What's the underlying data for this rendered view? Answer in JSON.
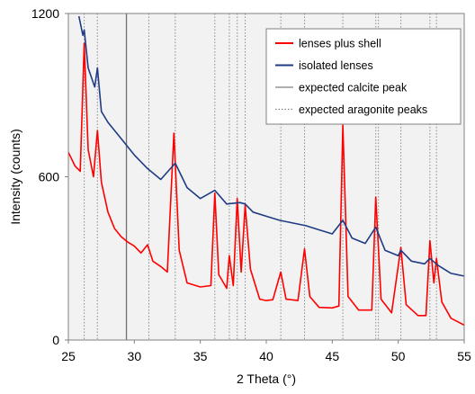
{
  "chart_data": {
    "type": "line",
    "xlabel": "2 Theta (°)",
    "ylabel": "Intensity (counts)",
    "xlim": [
      25,
      55
    ],
    "ylim": [
      0,
      1200
    ],
    "x_ticks": [
      25,
      30,
      35,
      40,
      45,
      50,
      55
    ],
    "x_tick_labels": [
      "25",
      "30",
      "35",
      "40",
      "45",
      "50",
      "55"
    ],
    "y_ticks": [
      0,
      600,
      1200
    ],
    "y_tick_labels": [
      "0",
      "600",
      "1200"
    ],
    "grid": false,
    "legend_position": "top-right",
    "reference_lines": {
      "calcite": [
        29.4
      ],
      "aragonite": [
        26.2,
        27.2,
        31.1,
        33.1,
        36.1,
        37.2,
        37.8,
        38.4,
        41.1,
        42.9,
        45.8,
        48.3,
        48.5,
        50.2,
        52.4,
        52.9
      ]
    },
    "series": [
      {
        "name": "lenses plus shell",
        "color": "#ff0000",
        "points": [
          [
            25.0,
            690
          ],
          [
            25.5,
            640
          ],
          [
            25.9,
            620
          ],
          [
            26.2,
            1090
          ],
          [
            26.5,
            700
          ],
          [
            26.9,
            600
          ],
          [
            27.2,
            770
          ],
          [
            27.5,
            580
          ],
          [
            28.0,
            470
          ],
          [
            28.5,
            410
          ],
          [
            29.0,
            380
          ],
          [
            29.5,
            360
          ],
          [
            30.0,
            345
          ],
          [
            30.5,
            320
          ],
          [
            31.0,
            350
          ],
          [
            31.4,
            290
          ],
          [
            32.0,
            270
          ],
          [
            32.5,
            250
          ],
          [
            33.0,
            760
          ],
          [
            33.4,
            330
          ],
          [
            34.0,
            210
          ],
          [
            35.0,
            195
          ],
          [
            35.8,
            200
          ],
          [
            36.1,
            540
          ],
          [
            36.4,
            240
          ],
          [
            37.0,
            190
          ],
          [
            37.2,
            310
          ],
          [
            37.5,
            200
          ],
          [
            37.8,
            520
          ],
          [
            38.1,
            250
          ],
          [
            38.4,
            495
          ],
          [
            38.8,
            260
          ],
          [
            39.5,
            150
          ],
          [
            40.0,
            145
          ],
          [
            40.5,
            148
          ],
          [
            41.1,
            250
          ],
          [
            41.5,
            150
          ],
          [
            42.4,
            145
          ],
          [
            42.9,
            335
          ],
          [
            43.3,
            160
          ],
          [
            44.0,
            120
          ],
          [
            45.0,
            118
          ],
          [
            45.5,
            125
          ],
          [
            45.8,
            790
          ],
          [
            46.2,
            160
          ],
          [
            47.0,
            110
          ],
          [
            48.0,
            110
          ],
          [
            48.3,
            525
          ],
          [
            48.7,
            150
          ],
          [
            49.5,
            100
          ],
          [
            50.2,
            340
          ],
          [
            50.6,
            130
          ],
          [
            51.5,
            90
          ],
          [
            52.1,
            90
          ],
          [
            52.4,
            365
          ],
          [
            52.7,
            210
          ],
          [
            52.9,
            300
          ],
          [
            53.3,
            140
          ],
          [
            54.0,
            80
          ],
          [
            55.0,
            55
          ]
        ]
      },
      {
        "name": "isolated lenses",
        "color": "#1f3b83",
        "points": [
          [
            25.8,
            1190
          ],
          [
            26.1,
            1120
          ],
          [
            26.2,
            1140
          ],
          [
            26.5,
            1000
          ],
          [
            27.0,
            930
          ],
          [
            27.2,
            1000
          ],
          [
            27.5,
            840
          ],
          [
            28.0,
            800
          ],
          [
            29.0,
            740
          ],
          [
            30.0,
            680
          ],
          [
            31.0,
            630
          ],
          [
            32.0,
            590
          ],
          [
            33.1,
            650
          ],
          [
            34.0,
            560
          ],
          [
            35.0,
            520
          ],
          [
            36.1,
            550
          ],
          [
            37.0,
            500
          ],
          [
            38.0,
            505
          ],
          [
            38.4,
            500
          ],
          [
            39.0,
            470
          ],
          [
            40.0,
            455
          ],
          [
            41.0,
            440
          ],
          [
            42.0,
            430
          ],
          [
            43.0,
            420
          ],
          [
            44.0,
            405
          ],
          [
            45.0,
            390
          ],
          [
            45.8,
            440
          ],
          [
            46.5,
            375
          ],
          [
            47.5,
            355
          ],
          [
            48.3,
            415
          ],
          [
            49.0,
            330
          ],
          [
            50.0,
            310
          ],
          [
            50.2,
            330
          ],
          [
            51.0,
            290
          ],
          [
            52.0,
            280
          ],
          [
            52.4,
            300
          ],
          [
            53.0,
            275
          ],
          [
            54.0,
            245
          ],
          [
            55.0,
            235
          ]
        ]
      }
    ],
    "reference_legend": [
      {
        "name": "expected calcite peak",
        "color": "#808080",
        "style": "solid"
      },
      {
        "name": "expected aragonite peaks",
        "color": "#808080",
        "style": "dotted"
      }
    ]
  }
}
